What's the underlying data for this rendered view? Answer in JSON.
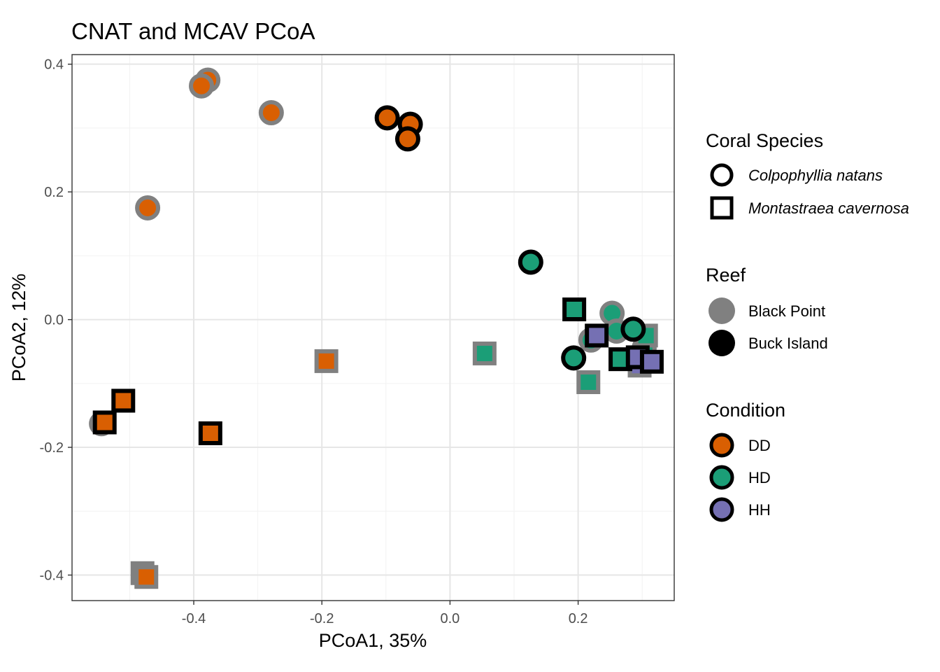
{
  "chart_data": {
    "type": "scatter",
    "title": "CNAT and MCAV PCoA",
    "xlabel": "PCoA1, 35%",
    "ylabel": "PCoA2, 12%",
    "xlim": [
      -0.59,
      0.35
    ],
    "ylim": [
      -0.44,
      0.415
    ],
    "x_ticks": [
      -0.4,
      -0.2,
      0.0,
      0.2
    ],
    "x_tick_labels": [
      "-0.4",
      "-0.2",
      "0.0",
      "0.2"
    ],
    "y_ticks": [
      -0.4,
      -0.2,
      0.0,
      0.2,
      0.4
    ],
    "y_tick_labels": [
      "-0.4",
      "-0.2",
      "0.0",
      "0.2",
      "0.4"
    ],
    "grid": true,
    "legend_position": "right",
    "legends": {
      "species": {
        "title": "Coral Species",
        "items": [
          {
            "label": "Colpophyllia natans",
            "shape": "circle"
          },
          {
            "label": "Montastraea cavernosa",
            "shape": "square"
          }
        ]
      },
      "reef": {
        "title": "Reef",
        "items": [
          {
            "label": "Black Point",
            "color": "#808080"
          },
          {
            "label": "Buck Island",
            "color": "#000000"
          }
        ]
      },
      "condition": {
        "title": "Condition",
        "items": [
          {
            "label": "DD",
            "color": "#D95F02"
          },
          {
            "label": "HD",
            "color": "#1B9E77"
          },
          {
            "label": "HH",
            "color": "#7570B3"
          }
        ]
      }
    },
    "points": [
      {
        "x": -0.378,
        "y": 0.375,
        "species": "Colpophyllia natans",
        "reef": "Black Point",
        "condition": "DD"
      },
      {
        "x": -0.388,
        "y": 0.366,
        "species": "Colpophyllia natans",
        "reef": "Black Point",
        "condition": "DD"
      },
      {
        "x": -0.279,
        "y": 0.324,
        "species": "Colpophyllia natans",
        "reef": "Black Point",
        "condition": "DD"
      },
      {
        "x": -0.472,
        "y": 0.175,
        "species": "Colpophyllia natans",
        "reef": "Black Point",
        "condition": "DD"
      },
      {
        "x": -0.098,
        "y": 0.316,
        "species": "Colpophyllia natans",
        "reef": "Buck Island",
        "condition": "DD"
      },
      {
        "x": -0.062,
        "y": 0.306,
        "species": "Colpophyllia natans",
        "reef": "Buck Island",
        "condition": "DD"
      },
      {
        "x": -0.066,
        "y": 0.283,
        "species": "Colpophyllia natans",
        "reef": "Buck Island",
        "condition": "DD"
      },
      {
        "x": -0.544,
        "y": -0.163,
        "species": "Colpophyllia natans",
        "reef": "Black Point",
        "condition": "DD"
      },
      {
        "x": -0.193,
        "y": -0.065,
        "species": "Montastraea cavernosa",
        "reef": "Black Point",
        "condition": "DD"
      },
      {
        "x": -0.48,
        "y": -0.397,
        "species": "Montastraea cavernosa",
        "reef": "Black Point",
        "condition": "DD"
      },
      {
        "x": -0.474,
        "y": -0.403,
        "species": "Montastraea cavernosa",
        "reef": "Black Point",
        "condition": "DD"
      },
      {
        "x": -0.51,
        "y": -0.127,
        "species": "Montastraea cavernosa",
        "reef": "Buck Island",
        "condition": "DD"
      },
      {
        "x": -0.539,
        "y": -0.161,
        "species": "Montastraea cavernosa",
        "reef": "Buck Island",
        "condition": "DD"
      },
      {
        "x": -0.374,
        "y": -0.178,
        "species": "Montastraea cavernosa",
        "reef": "Buck Island",
        "condition": "DD"
      },
      {
        "x": 0.126,
        "y": 0.09,
        "species": "Colpophyllia natans",
        "reef": "Buck Island",
        "condition": "HD"
      },
      {
        "x": 0.253,
        "y": 0.01,
        "species": "Colpophyllia natans",
        "reef": "Black Point",
        "condition": "HD"
      },
      {
        "x": 0.22,
        "y": -0.032,
        "species": "Colpophyllia natans",
        "reef": "Black Point",
        "condition": "HD"
      },
      {
        "x": 0.26,
        "y": -0.018,
        "species": "Colpophyllia natans",
        "reef": "Black Point",
        "condition": "HD"
      },
      {
        "x": 0.303,
        "y": -0.045,
        "species": "Colpophyllia natans",
        "reef": "Black Point",
        "condition": "HD"
      },
      {
        "x": 0.286,
        "y": -0.015,
        "species": "Colpophyllia natans",
        "reef": "Buck Island",
        "condition": "HD"
      },
      {
        "x": 0.193,
        "y": -0.06,
        "species": "Colpophyllia natans",
        "reef": "Buck Island",
        "condition": "HD"
      },
      {
        "x": 0.054,
        "y": -0.053,
        "species": "Montastraea cavernosa",
        "reef": "Black Point",
        "condition": "HD"
      },
      {
        "x": 0.216,
        "y": -0.098,
        "species": "Montastraea cavernosa",
        "reef": "Black Point",
        "condition": "HD"
      },
      {
        "x": 0.306,
        "y": -0.025,
        "species": "Montastraea cavernosa",
        "reef": "Black Point",
        "condition": "HD"
      },
      {
        "x": 0.194,
        "y": 0.016,
        "species": "Montastraea cavernosa",
        "reef": "Buck Island",
        "condition": "HD"
      },
      {
        "x": 0.266,
        "y": -0.062,
        "species": "Montastraea cavernosa",
        "reef": "Buck Island",
        "condition": "HD"
      },
      {
        "x": 0.296,
        "y": -0.072,
        "species": "Montastraea cavernosa",
        "reef": "Black Point",
        "condition": "HH"
      },
      {
        "x": 0.229,
        "y": -0.025,
        "species": "Montastraea cavernosa",
        "reef": "Buck Island",
        "condition": "HH"
      },
      {
        "x": 0.293,
        "y": -0.059,
        "species": "Montastraea cavernosa",
        "reef": "Buck Island",
        "condition": "HH"
      },
      {
        "x": 0.315,
        "y": -0.066,
        "species": "Montastraea cavernosa",
        "reef": "Buck Island",
        "condition": "HH"
      }
    ]
  }
}
